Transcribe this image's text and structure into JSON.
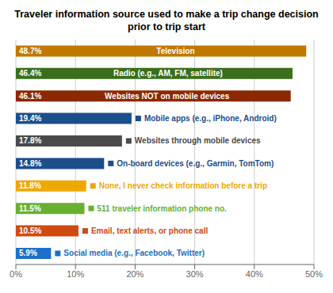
{
  "chart_data": {
    "type": "bar",
    "title": "Traveler information source used to make a trip change decision\nprior to trip start",
    "orientation": "horizontal",
    "categories": [
      "Television",
      "Radio (e.g., AM, FM, satellite)",
      "Websites NOT on mobile devices",
      "Mobile apps (e.g., iPhone, Android)",
      "Websites through mobile devices",
      "On-board devices (e.g., Garmin, TomTom)",
      "None, I never check information before a trip",
      "511 traveler information phone no.",
      "Email, text alerts, or phone call",
      "Social media (e.g., Facebook, Twitter)"
    ],
    "values": [
      48.7,
      46.4,
      46.1,
      19.4,
      17.8,
      14.8,
      11.8,
      11.5,
      10.5,
      5.9
    ],
    "value_labels": [
      "48.7%",
      "46.4%",
      "46.1%",
      "19.4%",
      "17.8%",
      "14.8%",
      "11.8%",
      "11.5%",
      "10.5%",
      "5.9%"
    ],
    "data_labels": true,
    "colors": [
      "#C07800",
      "#3A6E1A",
      "#8B2800",
      "#1C4E8A",
      "#4A4A4A",
      "#1C4E8A",
      "#F0A800",
      "#6AB030",
      "#D04A10",
      "#1C70C8"
    ],
    "xlim": [
      0,
      50
    ],
    "xticks": [
      {
        "value": 0,
        "label": "0%"
      },
      {
        "value": 10,
        "label": "10%"
      },
      {
        "value": 20,
        "label": "20%"
      },
      {
        "value": 30,
        "label": "30%"
      },
      {
        "value": 40,
        "label": "40%"
      },
      {
        "value": 50,
        "label": "50%"
      }
    ],
    "grid": true
  }
}
